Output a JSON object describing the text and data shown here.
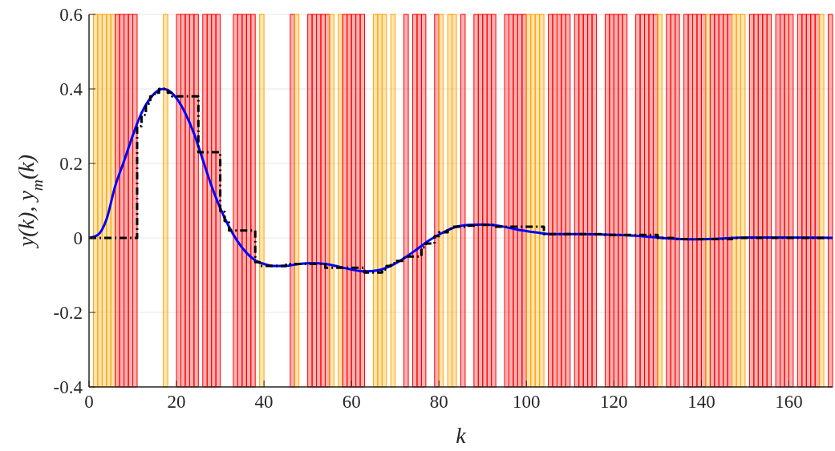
{
  "chart_data": {
    "type": "line",
    "xlabel": "k",
    "ylabel": "y(k), y$_{m}$(k)",
    "xlim": [
      0,
      170
    ],
    "ylim": [
      -0.4,
      0.6
    ],
    "xticks": [
      0,
      20,
      40,
      60,
      80,
      100,
      120,
      140,
      160
    ],
    "yticks": [
      -0.4,
      -0.2,
      0,
      0.2,
      0.4,
      0.6
    ],
    "grid": "y",
    "marker": "none",
    "series": [
      {
        "color": "#0000ff",
        "line_style": "solid",
        "x": [
          0,
          2,
          4,
          6,
          8,
          10,
          12,
          14,
          16,
          17,
          18,
          20,
          22,
          24,
          26,
          28,
          30,
          32,
          34,
          36,
          38,
          40,
          42,
          45,
          48,
          51,
          54,
          57,
          60,
          63,
          66,
          69,
          72,
          75,
          78,
          81,
          84,
          87,
          90,
          94,
          98,
          102,
          106,
          112,
          120,
          126,
          132,
          138,
          144,
          150,
          160,
          170
        ],
        "values": [
          0,
          0.008,
          0.05,
          0.14,
          0.206,
          0.275,
          0.335,
          0.375,
          0.397,
          0.4,
          0.397,
          0.375,
          0.335,
          0.28,
          0.21,
          0.14,
          0.08,
          0.03,
          -0.01,
          -0.04,
          -0.06,
          -0.07,
          -0.075,
          -0.075,
          -0.07,
          -0.068,
          -0.07,
          -0.077,
          -0.085,
          -0.09,
          -0.087,
          -0.075,
          -0.055,
          -0.03,
          -0.005,
          0.015,
          0.03,
          0.035,
          0.036,
          0.032,
          0.022,
          0.015,
          0.01,
          0.01,
          0.008,
          0.005,
          -0.001,
          -0.004,
          -0.002,
          0.001,
          0.001,
          0
        ]
      },
      {
        "type": "step",
        "color": "#000000",
        "line_style": "dashed",
        "x": [
          0,
          11,
          12,
          13,
          14,
          15,
          16,
          18,
          19,
          25,
          30,
          31,
          32,
          38,
          39,
          45,
          46,
          54,
          63,
          67,
          68,
          69,
          70,
          72,
          76,
          77,
          79,
          80,
          82,
          83,
          86,
          88,
          93,
          104,
          118,
          130,
          134,
          147,
          170
        ],
        "values": [
          0,
          0.3,
          0.33,
          0.36,
          0.38,
          0.39,
          0.4,
          0.39,
          0.38,
          0.23,
          0.07,
          0.045,
          0.02,
          -0.065,
          -0.075,
          -0.072,
          -0.07,
          -0.08,
          -0.093,
          -0.085,
          -0.075,
          -0.068,
          -0.062,
          -0.05,
          -0.025,
          -0.015,
          0.005,
          0.015,
          0.025,
          0.03,
          0.033,
          0.035,
          0.03,
          0.01,
          0.008,
          0,
          -0.003,
          0,
          0
        ]
      }
    ],
    "bands": [
      {
        "axis": "x",
        "from": 1,
        "to": 2,
        "color": "#ffa500"
      },
      {
        "axis": "x",
        "from": 2,
        "to": 3,
        "color": "#ffa500"
      },
      {
        "axis": "x",
        "from": 3,
        "to": 4,
        "color": "#ffa500"
      },
      {
        "axis": "x",
        "from": 4,
        "to": 5,
        "color": "#ffa500"
      },
      {
        "axis": "x",
        "from": 5,
        "to": 6,
        "color": "#ffa500"
      },
      {
        "axis": "x",
        "from": 6,
        "to": 7,
        "color": "#ff0000"
      },
      {
        "axis": "x",
        "from": 7,
        "to": 8,
        "color": "#ff0000"
      },
      {
        "axis": "x",
        "from": 8,
        "to": 9,
        "color": "#ff0000"
      },
      {
        "axis": "x",
        "from": 9,
        "to": 10,
        "color": "#ff0000"
      },
      {
        "axis": "x",
        "from": 10,
        "to": 11,
        "color": "#ff0000"
      },
      {
        "axis": "x",
        "from": 17,
        "to": 18,
        "color": "#ffa500"
      },
      {
        "axis": "x",
        "from": 20,
        "to": 21,
        "color": "#ff0000"
      },
      {
        "axis": "x",
        "from": 21,
        "to": 22,
        "color": "#ff0000"
      },
      {
        "axis": "x",
        "from": 22,
        "to": 23,
        "color": "#ff0000"
      },
      {
        "axis": "x",
        "from": 23,
        "to": 24,
        "color": "#ff0000"
      },
      {
        "axis": "x",
        "from": 24,
        "to": 25,
        "color": "#ff0000"
      },
      {
        "axis": "x",
        "from": 26,
        "to": 27,
        "color": "#ff0000"
      },
      {
        "axis": "x",
        "from": 27,
        "to": 28,
        "color": "#ff0000"
      },
      {
        "axis": "x",
        "from": 28,
        "to": 29,
        "color": "#ff0000"
      },
      {
        "axis": "x",
        "from": 29,
        "to": 30,
        "color": "#ff0000"
      },
      {
        "axis": "x",
        "from": 33,
        "to": 34,
        "color": "#ff0000"
      },
      {
        "axis": "x",
        "from": 34,
        "to": 35,
        "color": "#ff0000"
      },
      {
        "axis": "x",
        "from": 35,
        "to": 36,
        "color": "#ff0000"
      },
      {
        "axis": "x",
        "from": 36,
        "to": 37,
        "color": "#ff0000"
      },
      {
        "axis": "x",
        "from": 37,
        "to": 38,
        "color": "#ff0000"
      },
      {
        "axis": "x",
        "from": 39,
        "to": 40,
        "color": "#ffa500"
      },
      {
        "axis": "x",
        "from": 46,
        "to": 47,
        "color": "#ff0000"
      },
      {
        "axis": "x",
        "from": 47,
        "to": 48,
        "color": "#ffa500"
      },
      {
        "axis": "x",
        "from": 50,
        "to": 51,
        "color": "#ff0000"
      },
      {
        "axis": "x",
        "from": 51,
        "to": 52,
        "color": "#ff0000"
      },
      {
        "axis": "x",
        "from": 52,
        "to": 53,
        "color": "#ff0000"
      },
      {
        "axis": "x",
        "from": 53,
        "to": 54,
        "color": "#ff0000"
      },
      {
        "axis": "x",
        "from": 54,
        "to": 55,
        "color": "#ff0000"
      },
      {
        "axis": "x",
        "from": 55,
        "to": 56,
        "color": "#ffa500"
      },
      {
        "axis": "x",
        "from": 57,
        "to": 58,
        "color": "#ffa500"
      },
      {
        "axis": "x",
        "from": 58,
        "to": 59,
        "color": "#ff0000"
      },
      {
        "axis": "x",
        "from": 59,
        "to": 60,
        "color": "#ff0000"
      },
      {
        "axis": "x",
        "from": 60,
        "to": 61,
        "color": "#ff0000"
      },
      {
        "axis": "x",
        "from": 61,
        "to": 62,
        "color": "#ff0000"
      },
      {
        "axis": "x",
        "from": 62,
        "to": 63,
        "color": "#ff0000"
      },
      {
        "axis": "x",
        "from": 65,
        "to": 66,
        "color": "#ffa500"
      },
      {
        "axis": "x",
        "from": 66,
        "to": 67,
        "color": "#ffa500"
      },
      {
        "axis": "x",
        "from": 67,
        "to": 68,
        "color": "#ffa500"
      },
      {
        "axis": "x",
        "from": 69,
        "to": 70,
        "color": "#ffa500"
      },
      {
        "axis": "x",
        "from": 72,
        "to": 73,
        "color": "#ff0000"
      },
      {
        "axis": "x",
        "from": 74,
        "to": 75,
        "color": "#ff0000"
      },
      {
        "axis": "x",
        "from": 75,
        "to": 76,
        "color": "#ff0000"
      },
      {
        "axis": "x",
        "from": 76,
        "to": 77,
        "color": "#ff0000"
      },
      {
        "axis": "x",
        "from": 79,
        "to": 80,
        "color": "#ff0000"
      },
      {
        "axis": "x",
        "from": 80,
        "to": 81,
        "color": "#ffa500"
      },
      {
        "axis": "x",
        "from": 82,
        "to": 83,
        "color": "#ffa500"
      },
      {
        "axis": "x",
        "from": 83,
        "to": 84,
        "color": "#ffa500"
      },
      {
        "axis": "x",
        "from": 85,
        "to": 86,
        "color": "#ff0000"
      },
      {
        "axis": "x",
        "from": 88,
        "to": 89,
        "color": "#ff0000"
      },
      {
        "axis": "x",
        "from": 89,
        "to": 90,
        "color": "#ff0000"
      },
      {
        "axis": "x",
        "from": 90,
        "to": 91,
        "color": "#ff0000"
      },
      {
        "axis": "x",
        "from": 91,
        "to": 92,
        "color": "#ff0000"
      },
      {
        "axis": "x",
        "from": 92,
        "to": 93,
        "color": "#ff0000"
      },
      {
        "axis": "x",
        "from": 95,
        "to": 96,
        "color": "#ff0000"
      },
      {
        "axis": "x",
        "from": 96,
        "to": 97,
        "color": "#ff0000"
      },
      {
        "axis": "x",
        "from": 97,
        "to": 98,
        "color": "#ff0000"
      },
      {
        "axis": "x",
        "from": 98,
        "to": 99,
        "color": "#ff0000"
      },
      {
        "axis": "x",
        "from": 99,
        "to": 100,
        "color": "#ff0000"
      },
      {
        "axis": "x",
        "from": 100,
        "to": 101,
        "color": "#ffa500"
      },
      {
        "axis": "x",
        "from": 101,
        "to": 102,
        "color": "#ffa500"
      },
      {
        "axis": "x",
        "from": 102,
        "to": 103,
        "color": "#ffa500"
      },
      {
        "axis": "x",
        "from": 103,
        "to": 104,
        "color": "#ffa500"
      },
      {
        "axis": "x",
        "from": 105,
        "to": 106,
        "color": "#ff0000"
      },
      {
        "axis": "x",
        "from": 106,
        "to": 107,
        "color": "#ff0000"
      },
      {
        "axis": "x",
        "from": 107,
        "to": 108,
        "color": "#ff0000"
      },
      {
        "axis": "x",
        "from": 108,
        "to": 109,
        "color": "#ff0000"
      },
      {
        "axis": "x",
        "from": 109,
        "to": 110,
        "color": "#ff0000"
      },
      {
        "axis": "x",
        "from": 111,
        "to": 112,
        "color": "#ff0000"
      },
      {
        "axis": "x",
        "from": 112,
        "to": 113,
        "color": "#ff0000"
      },
      {
        "axis": "x",
        "from": 113,
        "to": 114,
        "color": "#ff0000"
      },
      {
        "axis": "x",
        "from": 114,
        "to": 115,
        "color": "#ff0000"
      },
      {
        "axis": "x",
        "from": 115,
        "to": 116,
        "color": "#ff0000"
      },
      {
        "axis": "x",
        "from": 118,
        "to": 119,
        "color": "#ff0000"
      },
      {
        "axis": "x",
        "from": 119,
        "to": 120,
        "color": "#ff0000"
      },
      {
        "axis": "x",
        "from": 120,
        "to": 121,
        "color": "#ff0000"
      },
      {
        "axis": "x",
        "from": 121,
        "to": 122,
        "color": "#ff0000"
      },
      {
        "axis": "x",
        "from": 122,
        "to": 123,
        "color": "#ff0000"
      },
      {
        "axis": "x",
        "from": 125,
        "to": 126,
        "color": "#ff0000"
      },
      {
        "axis": "x",
        "from": 126,
        "to": 127,
        "color": "#ff0000"
      },
      {
        "axis": "x",
        "from": 127,
        "to": 128,
        "color": "#ff0000"
      },
      {
        "axis": "x",
        "from": 128,
        "to": 129,
        "color": "#ff0000"
      },
      {
        "axis": "x",
        "from": 129,
        "to": 130,
        "color": "#ff0000"
      },
      {
        "axis": "x",
        "from": 130,
        "to": 131,
        "color": "#ffa500"
      },
      {
        "axis": "x",
        "from": 132,
        "to": 133,
        "color": "#ff0000"
      },
      {
        "axis": "x",
        "from": 133,
        "to": 134,
        "color": "#ff0000"
      },
      {
        "axis": "x",
        "from": 134,
        "to": 135,
        "color": "#ff0000"
      },
      {
        "axis": "x",
        "from": 136,
        "to": 137,
        "color": "#ff0000"
      },
      {
        "axis": "x",
        "from": 137,
        "to": 138,
        "color": "#ff0000"
      },
      {
        "axis": "x",
        "from": 138,
        "to": 139,
        "color": "#ff0000"
      },
      {
        "axis": "x",
        "from": 139,
        "to": 140,
        "color": "#ff0000"
      },
      {
        "axis": "x",
        "from": 140,
        "to": 141,
        "color": "#ff0000"
      },
      {
        "axis": "x",
        "from": 141,
        "to": 142,
        "color": "#ffa500"
      },
      {
        "axis": "x",
        "from": 142,
        "to": 143,
        "color": "#ff0000"
      },
      {
        "axis": "x",
        "from": 143,
        "to": 144,
        "color": "#ff0000"
      },
      {
        "axis": "x",
        "from": 144,
        "to": 145,
        "color": "#ff0000"
      },
      {
        "axis": "x",
        "from": 145,
        "to": 146,
        "color": "#ff0000"
      },
      {
        "axis": "x",
        "from": 146,
        "to": 147,
        "color": "#ff0000"
      },
      {
        "axis": "x",
        "from": 147,
        "to": 148,
        "color": "#ffa500"
      },
      {
        "axis": "x",
        "from": 148,
        "to": 149,
        "color": "#ffa500"
      },
      {
        "axis": "x",
        "from": 149,
        "to": 150,
        "color": "#ffa500"
      },
      {
        "axis": "x",
        "from": 151,
        "to": 152,
        "color": "#ff0000"
      },
      {
        "axis": "x",
        "from": 152,
        "to": 153,
        "color": "#ff0000"
      },
      {
        "axis": "x",
        "from": 153,
        "to": 154,
        "color": "#ff0000"
      },
      {
        "axis": "x",
        "from": 154,
        "to": 155,
        "color": "#ff0000"
      },
      {
        "axis": "x",
        "from": 155,
        "to": 156,
        "color": "#ff0000"
      },
      {
        "axis": "x",
        "from": 157,
        "to": 158,
        "color": "#ff0000"
      },
      {
        "axis": "x",
        "from": 158,
        "to": 159,
        "color": "#ff0000"
      },
      {
        "axis": "x",
        "from": 159,
        "to": 160,
        "color": "#ff0000"
      },
      {
        "axis": "x",
        "from": 160,
        "to": 161,
        "color": "#ff0000"
      },
      {
        "axis": "x",
        "from": 162,
        "to": 163,
        "color": "#ff0000"
      },
      {
        "axis": "x",
        "from": 163,
        "to": 164,
        "color": "#ff0000"
      },
      {
        "axis": "x",
        "from": 164,
        "to": 165,
        "color": "#ff0000"
      },
      {
        "axis": "x",
        "from": 165,
        "to": 166,
        "color": "#ff0000"
      },
      {
        "axis": "x",
        "from": 166,
        "to": 167,
        "color": "#ff0000"
      },
      {
        "axis": "x",
        "from": 167,
        "to": 168,
        "color": "#ffa500"
      },
      {
        "axis": "x",
        "from": 169,
        "to": 170,
        "color": "#ff0000"
      }
    ]
  }
}
